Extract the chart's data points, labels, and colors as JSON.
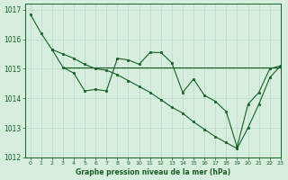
{
  "bg_color": "#d6eedd",
  "grid_color": "#b8d8c8",
  "line_color": "#1a5c2a",
  "title": "Graphe pression niveau de la mer (hPa)",
  "xlim": [
    -0.5,
    23
  ],
  "ylim": [
    1012,
    1017.2
  ],
  "yticks": [
    1012,
    1013,
    1014,
    1015,
    1016,
    1017
  ],
  "xticks": [
    0,
    1,
    2,
    3,
    4,
    5,
    6,
    7,
    8,
    9,
    10,
    11,
    12,
    13,
    14,
    15,
    16,
    17,
    18,
    19,
    20,
    21,
    22,
    23
  ],
  "series1_x": [
    0,
    1,
    2,
    3,
    4,
    5,
    6,
    7,
    8,
    9,
    10,
    11,
    12,
    13,
    14,
    15,
    16,
    17,
    18,
    19,
    20,
    21,
    22,
    23
  ],
  "series1_y": [
    1016.85,
    1016.2,
    1015.65,
    1015.5,
    1015.35,
    1015.15,
    1015.0,
    1014.95,
    1014.8,
    1014.6,
    1014.4,
    1014.2,
    1013.95,
    1013.7,
    1013.5,
    1013.2,
    1012.95,
    1012.7,
    1012.5,
    1012.3,
    1013.0,
    1013.8,
    1014.7,
    1015.1
  ],
  "series2_x": [
    2,
    3,
    4,
    5,
    6,
    7,
    8,
    9,
    10,
    11,
    12,
    13,
    14,
    15,
    16,
    17,
    18,
    19,
    20,
    21,
    22,
    23
  ],
  "series2_y": [
    1015.65,
    1015.05,
    1014.85,
    1014.25,
    1014.3,
    1014.25,
    1015.35,
    1015.3,
    1015.15,
    1015.55,
    1015.55,
    1015.2,
    1014.2,
    1014.65,
    1014.1,
    1013.9,
    1013.55,
    1012.35,
    1013.8,
    1014.2,
    1015.0,
    1015.1
  ],
  "series3_x": [
    3,
    23
  ],
  "series3_y": [
    1015.05,
    1015.05
  ]
}
